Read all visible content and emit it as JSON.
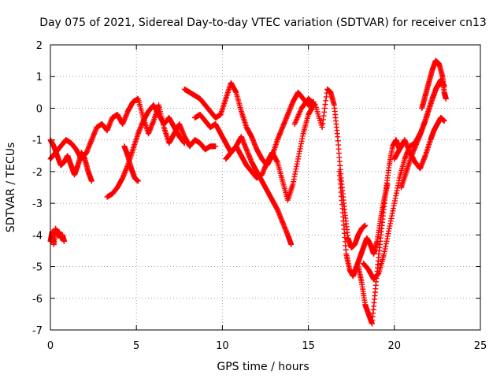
{
  "chart_data": {
    "type": "scatter",
    "title": "Day 075 of 2021, Sidereal Day-to-day VTEC variation (SDTVAR) for receiver cn13",
    "xlabel": "GPS time / hours",
    "ylabel": "SDTVAR / TECUs",
    "xlim": [
      0,
      25
    ],
    "ylim": [
      -7,
      2
    ],
    "xticks": [
      0,
      5,
      10,
      15,
      20,
      25
    ],
    "yticks": [
      2,
      1,
      0,
      -1,
      -2,
      -3,
      -4,
      -5,
      -6,
      -7
    ],
    "grid": true,
    "marker": "+",
    "color": "#ff0000",
    "series": [
      {
        "points": [
          [
            0.0,
            -1.6
          ],
          [
            0.3,
            -1.4
          ],
          [
            0.6,
            -1.2
          ],
          [
            0.9,
            -1.0
          ],
          [
            1.2,
            -1.1
          ],
          [
            1.5,
            -1.3
          ],
          [
            1.8,
            -1.6
          ],
          [
            2.1,
            -1.4
          ],
          [
            2.4,
            -1.0
          ],
          [
            2.7,
            -0.6
          ],
          [
            3.0,
            -0.5
          ],
          [
            3.3,
            -0.7
          ],
          [
            3.6,
            -0.3
          ],
          [
            3.9,
            -0.2
          ],
          [
            4.2,
            -0.5
          ],
          [
            4.5,
            -0.1
          ],
          [
            4.8,
            0.2
          ],
          [
            5.1,
            0.3
          ],
          [
            5.4,
            -0.3
          ],
          [
            5.7,
            -0.8
          ],
          [
            6.0,
            -0.4
          ],
          [
            6.3,
            0.1
          ],
          [
            6.6,
            -0.6
          ],
          [
            6.9,
            -1.1
          ],
          [
            7.2,
            -0.8
          ],
          [
            7.5,
            -0.5
          ],
          [
            7.8,
            -0.9
          ],
          [
            8.1,
            -1.2
          ],
          [
            8.4,
            -1.0
          ],
          [
            8.7,
            -1.1
          ],
          [
            9.0,
            -1.3
          ],
          [
            9.3,
            -1.2
          ],
          [
            9.6,
            -1.2
          ]
        ]
      },
      {
        "points": [
          [
            0.0,
            -1.0
          ],
          [
            0.2,
            -1.2
          ],
          [
            0.4,
            -1.5
          ],
          [
            0.6,
            -1.8
          ],
          [
            0.8,
            -1.7
          ],
          [
            1.0,
            -1.5
          ],
          [
            1.2,
            -1.8
          ],
          [
            1.4,
            -2.1
          ],
          [
            1.6,
            -1.8
          ],
          [
            1.8,
            -1.4
          ],
          [
            2.0,
            -1.6
          ],
          [
            2.2,
            -2.0
          ],
          [
            2.4,
            -2.3
          ]
        ]
      },
      {
        "points": [
          [
            0.0,
            -4.2
          ],
          [
            0.1,
            -3.9
          ],
          [
            0.2,
            -4.3
          ],
          [
            0.3,
            -3.8
          ],
          [
            0.4,
            -4.0
          ],
          [
            0.5,
            -3.9
          ],
          [
            0.6,
            -4.1
          ],
          [
            0.7,
            -4.0
          ],
          [
            0.8,
            -4.2
          ]
        ]
      },
      {
        "points": [
          [
            3.3,
            -2.8
          ],
          [
            3.6,
            -2.7
          ],
          [
            3.9,
            -2.5
          ],
          [
            4.2,
            -2.2
          ],
          [
            4.5,
            -1.8
          ],
          [
            4.8,
            -1.3
          ],
          [
            5.1,
            -0.8
          ],
          [
            5.4,
            -0.4
          ],
          [
            5.7,
            -0.1
          ],
          [
            6.0,
            0.1
          ],
          [
            6.3,
            -0.2
          ],
          [
            6.6,
            -0.5
          ],
          [
            6.9,
            -0.3
          ],
          [
            7.2,
            -0.6
          ],
          [
            7.5,
            -0.9
          ],
          [
            7.8,
            -1.1
          ]
        ]
      },
      {
        "points": [
          [
            4.3,
            -1.2
          ],
          [
            4.5,
            -1.5
          ],
          [
            4.7,
            -1.9
          ],
          [
            4.9,
            -2.2
          ],
          [
            5.1,
            -2.3
          ]
        ]
      },
      {
        "points": [
          [
            7.8,
            0.6
          ],
          [
            8.1,
            0.5
          ],
          [
            8.4,
            0.4
          ],
          [
            8.7,
            0.3
          ],
          [
            9.0,
            0.1
          ],
          [
            9.3,
            -0.1
          ],
          [
            9.6,
            -0.3
          ],
          [
            9.9,
            -0.2
          ],
          [
            10.2,
            0.3
          ],
          [
            10.5,
            0.8
          ],
          [
            10.8,
            0.5
          ],
          [
            11.1,
            -0.1
          ],
          [
            11.4,
            -0.6
          ],
          [
            11.7,
            -0.9
          ],
          [
            12.0,
            -1.3
          ],
          [
            12.3,
            -1.6
          ],
          [
            12.6,
            -1.8
          ],
          [
            12.9,
            -1.5
          ],
          [
            13.2,
            -1.0
          ],
          [
            13.5,
            -0.6
          ],
          [
            13.8,
            -0.2
          ],
          [
            14.1,
            0.2
          ],
          [
            14.4,
            0.5
          ],
          [
            14.7,
            0.3
          ],
          [
            15.0,
            0.1
          ],
          [
            15.3,
            0.2
          ]
        ]
      },
      {
        "points": [
          [
            8.4,
            -0.3
          ],
          [
            8.7,
            -0.2
          ],
          [
            9.0,
            -0.4
          ],
          [
            9.3,
            -0.6
          ],
          [
            9.6,
            -0.5
          ],
          [
            9.9,
            -0.8
          ],
          [
            10.2,
            -1.1
          ],
          [
            10.5,
            -1.4
          ],
          [
            10.8,
            -1.2
          ],
          [
            11.1,
            -0.9
          ],
          [
            11.4,
            -1.3
          ],
          [
            11.7,
            -1.7
          ],
          [
            12.0,
            -2.0
          ],
          [
            12.3,
            -2.3
          ],
          [
            12.6,
            -2.6
          ],
          [
            12.9,
            -2.9
          ],
          [
            13.2,
            -3.2
          ],
          [
            13.5,
            -3.6
          ],
          [
            13.8,
            -4.0
          ],
          [
            14.0,
            -4.3
          ]
        ]
      },
      {
        "points": [
          [
            10.2,
            -1.6
          ],
          [
            10.5,
            -1.4
          ],
          [
            10.8,
            -1.2
          ],
          [
            11.1,
            -1.5
          ],
          [
            11.4,
            -1.8
          ],
          [
            11.7,
            -2.0
          ],
          [
            12.0,
            -2.2
          ],
          [
            12.3,
            -2.1
          ],
          [
            12.6,
            -1.7
          ],
          [
            12.9,
            -1.4
          ],
          [
            13.2,
            -1.7
          ],
          [
            13.5,
            -2.3
          ],
          [
            13.8,
            -2.9
          ],
          [
            14.1,
            -2.4
          ],
          [
            14.4,
            -1.6
          ],
          [
            14.7,
            -0.8
          ],
          [
            15.0,
            -0.2
          ],
          [
            15.3,
            0.1
          ]
        ]
      },
      {
        "points": [
          [
            14.2,
            -0.5
          ],
          [
            14.6,
            0.0
          ],
          [
            15.0,
            0.3
          ],
          [
            15.4,
            0.1
          ],
          [
            15.8,
            -0.6
          ],
          [
            16.1,
            0.6
          ],
          [
            16.3,
            0.5
          ],
          [
            16.5,
            0.1
          ],
          [
            16.7,
            -0.9
          ],
          [
            16.9,
            -2.2
          ],
          [
            17.1,
            -3.2
          ],
          [
            17.3,
            -4.1
          ],
          [
            17.5,
            -4.4
          ],
          [
            17.7,
            -4.3
          ],
          [
            17.9,
            -4.0
          ],
          [
            18.1,
            -3.8
          ],
          [
            18.3,
            -3.7
          ]
        ]
      },
      {
        "points": [
          [
            16.8,
            -2.0
          ],
          [
            17.0,
            -3.3
          ],
          [
            17.2,
            -4.6
          ],
          [
            17.4,
            -5.1
          ],
          [
            17.6,
            -5.3
          ],
          [
            17.8,
            -5.0
          ],
          [
            18.0,
            -4.7
          ],
          [
            18.2,
            -4.4
          ],
          [
            18.4,
            -4.1
          ],
          [
            18.6,
            -4.3
          ],
          [
            18.8,
            -4.6
          ],
          [
            19.0,
            -4.2
          ],
          [
            19.2,
            -3.5
          ],
          [
            19.4,
            -2.9
          ],
          [
            19.6,
            -2.4
          ]
        ]
      },
      {
        "points": [
          [
            17.9,
            -5.0
          ],
          [
            18.1,
            -5.5
          ],
          [
            18.3,
            -6.2
          ],
          [
            18.5,
            -6.5
          ],
          [
            18.7,
            -6.8
          ],
          [
            18.9,
            -5.7
          ],
          [
            19.1,
            -4.6
          ],
          [
            19.3,
            -3.6
          ],
          [
            19.5,
            -2.6
          ],
          [
            19.7,
            -1.8
          ],
          [
            19.9,
            -1.2
          ],
          [
            20.1,
            -1.0
          ],
          [
            20.3,
            -1.3
          ],
          [
            20.5,
            -1.1
          ]
        ]
      },
      {
        "points": [
          [
            18.2,
            -4.9
          ],
          [
            18.5,
            -5.1
          ],
          [
            18.8,
            -5.4
          ],
          [
            19.1,
            -5.2
          ],
          [
            19.4,
            -4.6
          ],
          [
            19.7,
            -3.8
          ],
          [
            20.0,
            -3.0
          ],
          [
            20.3,
            -2.2
          ],
          [
            20.6,
            -1.6
          ],
          [
            20.9,
            -1.2
          ],
          [
            21.2,
            -1.1
          ],
          [
            21.5,
            -0.8
          ],
          [
            21.8,
            -0.4
          ],
          [
            22.1,
            0.1
          ],
          [
            22.4,
            0.6
          ],
          [
            22.7,
            0.9
          ],
          [
            22.9,
            0.7
          ]
        ]
      },
      {
        "points": [
          [
            20.0,
            -1.6
          ],
          [
            20.3,
            -1.3
          ],
          [
            20.6,
            -1.0
          ],
          [
            20.9,
            -1.4
          ],
          [
            21.2,
            -1.7
          ],
          [
            21.5,
            -1.9
          ],
          [
            21.8,
            -1.5
          ],
          [
            22.1,
            -1.0
          ],
          [
            22.3,
            -0.7
          ],
          [
            22.5,
            -0.5
          ],
          [
            22.7,
            -0.3
          ],
          [
            22.9,
            -0.4
          ]
        ]
      },
      {
        "points": [
          [
            21.6,
            0.0
          ],
          [
            21.8,
            0.4
          ],
          [
            22.0,
            0.8
          ],
          [
            22.2,
            1.2
          ],
          [
            22.4,
            1.5
          ],
          [
            22.6,
            1.4
          ],
          [
            22.8,
            1.0
          ],
          [
            22.9,
            0.5
          ],
          [
            23.0,
            0.3
          ]
        ]
      },
      {
        "points": [
          [
            20.4,
            -2.5
          ],
          [
            20.7,
            -2.0
          ],
          [
            21.0,
            -1.5
          ],
          [
            21.3,
            -1.1
          ],
          [
            21.6,
            -0.7
          ],
          [
            21.9,
            -0.2
          ],
          [
            22.2,
            0.3
          ],
          [
            22.5,
            0.7
          ],
          [
            22.8,
            0.8
          ]
        ]
      }
    ]
  }
}
